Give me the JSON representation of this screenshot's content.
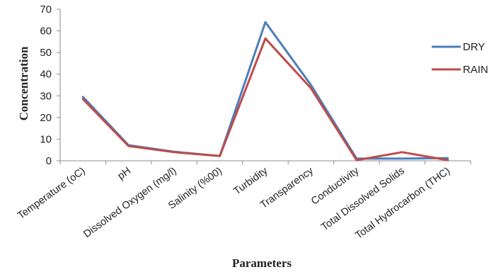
{
  "chart_data": {
    "type": "line",
    "categories": [
      "Temperature (oC)",
      "pH",
      "Dissolved Oxygen (mg/l)",
      "Salinity (%00)",
      "Turbidity",
      "Transparency",
      "Conductivity",
      "Total Dissolved Solids",
      "Total Hydrocarbon (THC)"
    ],
    "series": [
      {
        "name": "DRY",
        "color": "#4a7ebb",
        "values": [
          29.5,
          7.2,
          4.2,
          2.2,
          64.0,
          35.0,
          1.0,
          1.0,
          1.2
        ]
      },
      {
        "name": "RAIN",
        "color": "#be4b48",
        "values": [
          28.5,
          6.8,
          4.0,
          2.2,
          56.5,
          33.5,
          0.3,
          4.0,
          0.3
        ]
      }
    ],
    "xlabel": "Parameters",
    "ylabel": "Concentration",
    "ylim": [
      0,
      70
    ],
    "yticks": [
      "0",
      "10",
      "20",
      "30",
      "40",
      "50",
      "60",
      "70"
    ],
    "grid": false,
    "legend": "right"
  }
}
